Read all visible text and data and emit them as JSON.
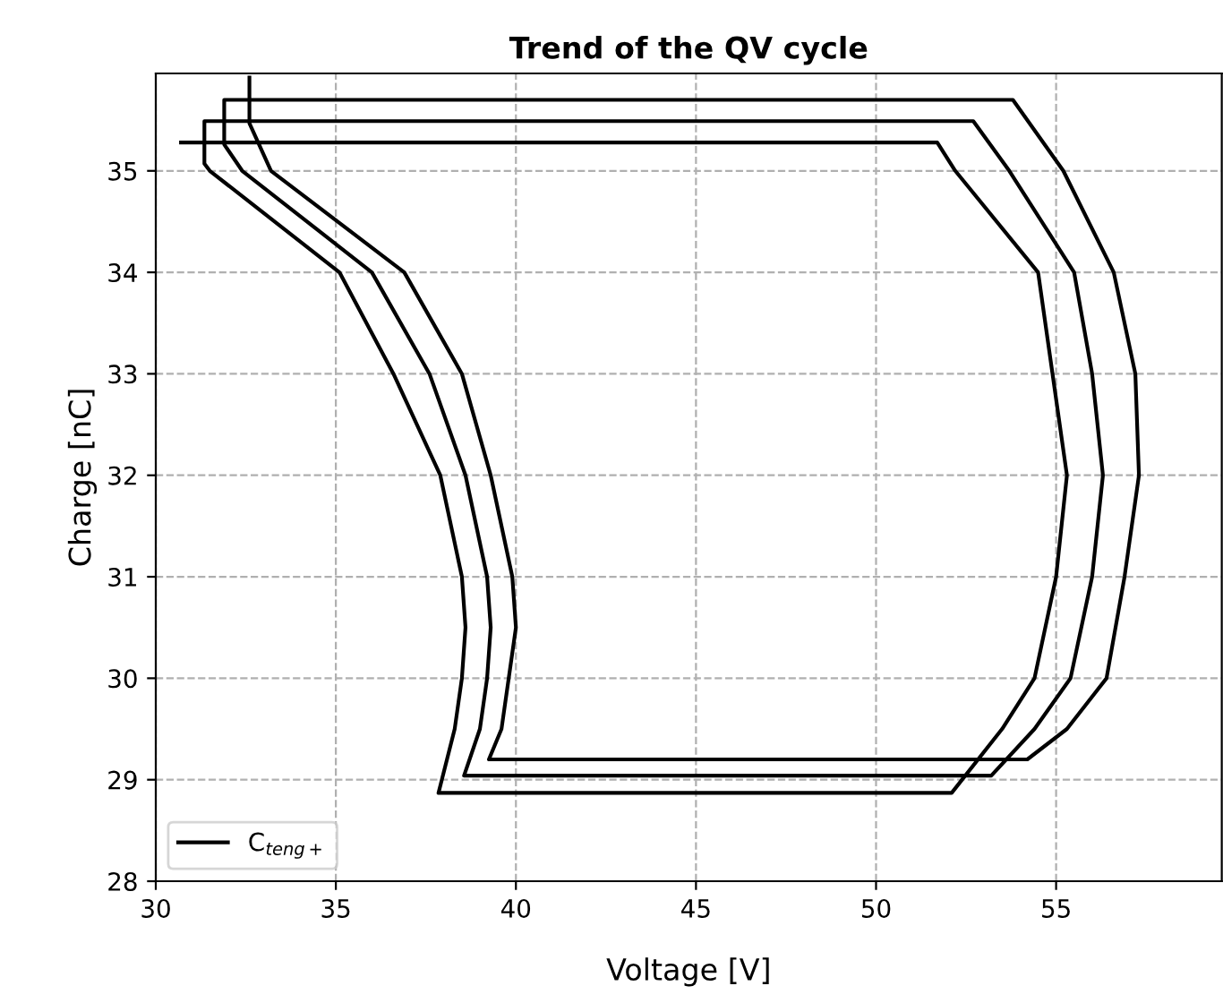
{
  "chart_data": {
    "type": "line",
    "title": "Trend of the QV cycle",
    "xlabel": "Voltage [V]",
    "ylabel": "Charge [nC]",
    "series": [
      {
        "name": "C$_{teng+}$",
        "color": "#000000",
        "x": [
          32.6,
          32.6,
          33.2,
          36.9,
          38.5,
          39.3,
          39.9,
          40.0,
          39.8,
          39.6,
          39.25,
          54.2,
          55.3,
          56.4,
          56.9,
          57.3,
          57.2,
          56.6,
          55.2,
          53.8,
          31.9,
          31.9,
          32.4,
          36.0,
          37.6,
          38.6,
          39.2,
          39.3,
          39.2,
          39.0,
          38.56,
          53.2,
          54.4,
          55.4,
          56.0,
          56.3,
          56.0,
          55.5,
          53.7,
          52.7,
          31.35,
          31.35,
          31.5,
          35.1,
          36.6,
          37.9,
          38.5,
          38.6,
          38.5,
          38.3,
          37.85,
          52.1,
          53.5,
          54.4,
          55.0,
          55.3,
          54.9,
          54.5,
          52.2,
          51.7,
          30.7
        ],
        "values": [
          35.92,
          35.47,
          35.0,
          34.0,
          33.0,
          32.0,
          31.0,
          30.5,
          30.0,
          29.5,
          29.2,
          29.2,
          29.5,
          30.0,
          31.0,
          32.0,
          33.0,
          34.0,
          35.0,
          35.7,
          35.7,
          35.26,
          35.0,
          34.0,
          33.0,
          32.0,
          31.0,
          30.5,
          30.0,
          29.5,
          29.04,
          29.04,
          29.5,
          30.0,
          31.0,
          32.0,
          33.0,
          34.0,
          35.0,
          35.49,
          35.49,
          35.07,
          35.0,
          34.0,
          33.0,
          32.0,
          31.0,
          30.5,
          30.0,
          29.5,
          28.87,
          28.87,
          29.5,
          30.0,
          31.0,
          32.0,
          33.0,
          34.0,
          35.0,
          35.28,
          35.28
        ]
      }
    ],
    "xlim": [
      30,
      59.6
    ],
    "ylim": [
      28,
      35.96
    ],
    "xticks": [
      30,
      35,
      40,
      45,
      50,
      55
    ],
    "yticks": [
      28,
      29,
      30,
      31,
      32,
      33,
      34,
      35
    ],
    "grid": true,
    "legend": "bottom left",
    "line_style": "solid",
    "marker": "none"
  }
}
